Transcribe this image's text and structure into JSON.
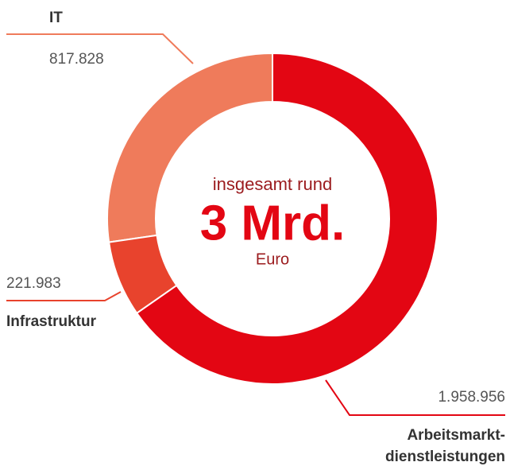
{
  "chart_data": {
    "type": "donut",
    "categories": [
      "Arbeitsmarkt-dienstleistungen",
      "Infrastruktur",
      "IT"
    ],
    "values": [
      1958956,
      221983,
      817828
    ],
    "value_labels": [
      "1.958.956",
      "221.983",
      "817.828"
    ],
    "colors": [
      "#e30613",
      "#e8432d",
      "#ef7b5b"
    ],
    "center_text": [
      "insgesamt rund",
      "3 Mrd.",
      "Euro"
    ]
  }
}
